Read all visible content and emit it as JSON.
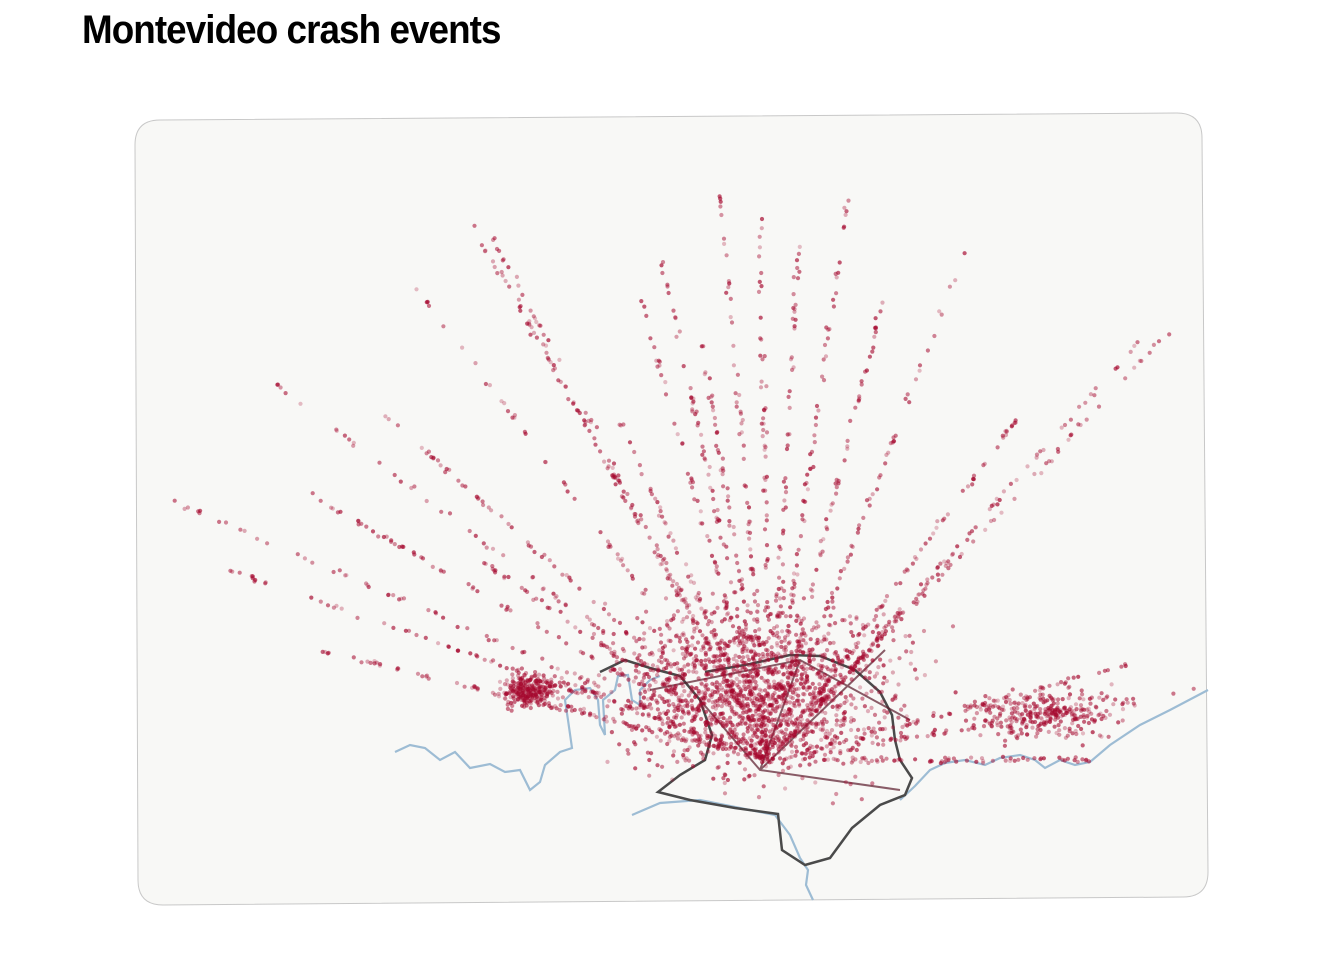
{
  "header": {
    "title": "Montevideo crash events"
  }
}
